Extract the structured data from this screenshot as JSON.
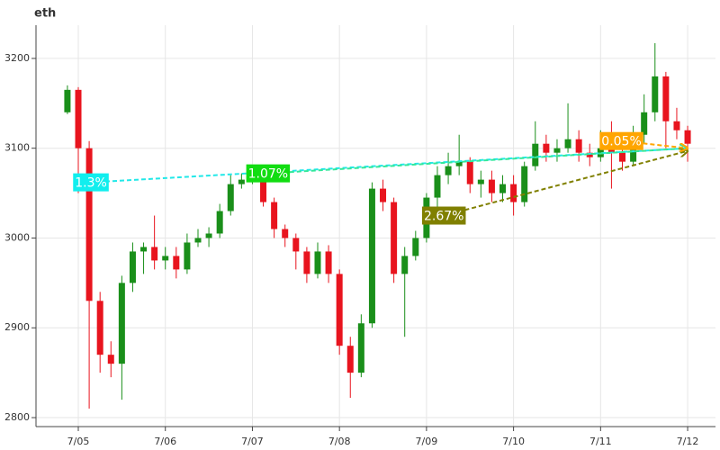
{
  "chart_data": {
    "type": "candlestick",
    "title": "eth",
    "x": [
      -0.125,
      0,
      0.125,
      0.25,
      0.375,
      0.5,
      0.625,
      0.75,
      0.875,
      1,
      1.125,
      1.25,
      1.375,
      1.5,
      1.625,
      1.75,
      1.875,
      2,
      2.125,
      2.25,
      2.375,
      2.5,
      2.625,
      2.75,
      2.875,
      3,
      3.125,
      3.25,
      3.375,
      3.5,
      3.625,
      3.75,
      3.875,
      4,
      4.125,
      4.25,
      4.375,
      4.5,
      4.625,
      4.75,
      4.875,
      5,
      5.125,
      5.25,
      5.375,
      5.5,
      5.625,
      5.75,
      5.875,
      6,
      6.125,
      6.25,
      6.375,
      6.5,
      6.625,
      6.75,
      6.875,
      7
    ],
    "open": [
      3140,
      3165,
      3100,
      2930,
      2870,
      2860,
      2950,
      2985,
      2990,
      2975,
      2980,
      2965,
      2995,
      3000,
      3005,
      3030,
      3060,
      3065,
      3070,
      3040,
      3010,
      3000,
      2985,
      2960,
      2985,
      2960,
      2880,
      2850,
      2905,
      3055,
      3040,
      2960,
      2980,
      3000,
      3045,
      3070,
      3080,
      3085,
      3060,
      3065,
      3050,
      3060,
      3040,
      3080,
      3105,
      3095,
      3100,
      3110,
      3095,
      3090,
      3100,
      3095,
      3085,
      3115,
      3140,
      3180,
      3130,
      3120
    ],
    "high": [
      3170,
      3168,
      3108,
      2940,
      2885,
      2958,
      2995,
      2995,
      3025,
      2990,
      2990,
      3005,
      3010,
      3012,
      3038,
      3070,
      3072,
      3080,
      3075,
      3045,
      3015,
      3005,
      2990,
      2995,
      2992,
      2965,
      2890,
      2915,
      3062,
      3065,
      3045,
      2990,
      3008,
      3050,
      3080,
      3095,
      3115,
      3090,
      3075,
      3075,
      3070,
      3070,
      3085,
      3130,
      3115,
      3110,
      3150,
      3120,
      3105,
      3120,
      3130,
      3105,
      3125,
      3160,
      3217,
      3185,
      3145,
      3125
    ],
    "low": [
      3138,
      3050,
      2810,
      2850,
      2845,
      2820,
      2940,
      2960,
      2965,
      2965,
      2955,
      2960,
      2990,
      2990,
      3000,
      3025,
      3055,
      3060,
      3035,
      3000,
      2990,
      2965,
      2950,
      2955,
      2950,
      2870,
      2822,
      2845,
      2900,
      3030,
      2950,
      2890,
      2975,
      2995,
      3030,
      3060,
      3070,
      3050,
      3045,
      3040,
      3040,
      3025,
      3035,
      3075,
      3085,
      3085,
      3095,
      3085,
      3080,
      3085,
      3055,
      3075,
      3080,
      3105,
      3130,
      3100,
      3110,
      3085
    ],
    "close": [
      3165,
      3100,
      2930,
      2870,
      2860,
      2950,
      2985,
      2990,
      2975,
      2980,
      2965,
      2995,
      3000,
      3005,
      3030,
      3060,
      3065,
      3070,
      3040,
      3010,
      3000,
      2985,
      2960,
      2985,
      2960,
      2880,
      2850,
      2905,
      3055,
      3040,
      2960,
      2980,
      3000,
      3045,
      3070,
      3080,
      3085,
      3060,
      3065,
      3050,
      3060,
      3040,
      3080,
      3105,
      3095,
      3100,
      3110,
      3095,
      3090,
      3100,
      3095,
      3085,
      3115,
      3140,
      3180,
      3130,
      3120,
      3105
    ],
    "up_color": "#1a8f1a",
    "down_color": "#e8141e",
    "xlim": [
      -0.486,
      7.32
    ],
    "xticks": [
      {
        "value": 0,
        "label": "7/05"
      },
      {
        "value": 1,
        "label": "7/06"
      },
      {
        "value": 2,
        "label": "7/07"
      },
      {
        "value": 3,
        "label": "7/08"
      },
      {
        "value": 4,
        "label": "7/09"
      },
      {
        "value": 5,
        "label": "7/10"
      },
      {
        "value": 6,
        "label": "7/11"
      },
      {
        "value": 7,
        "label": "7/12"
      }
    ],
    "ylim": [
      2790,
      3237
    ],
    "yticks": [
      2800,
      2900,
      3000,
      3100,
      3200
    ],
    "grid": true,
    "annotations": [
      {
        "text": "1.3%",
        "color": "#22e8e8",
        "box_color": "#11eeee",
        "x0": 0.145,
        "y0": 3062,
        "x1": 7.0,
        "y1": 3100
      },
      {
        "text": "1.07%",
        "color": "#33e899",
        "box_color": "#11dd11",
        "x0": 2.18,
        "y0": 3072,
        "x1": 7.0,
        "y1": 3100
      },
      {
        "text": "2.67%",
        "color": "#808000",
        "box_color": "#808000",
        "x0": 4.2,
        "y0": 3025,
        "x1": 7.0,
        "y1": 3097
      },
      {
        "text": "0.05%",
        "color": "#ffa500",
        "box_color": "#ffa500",
        "x0": 6.24,
        "y0": 3108,
        "x1": 7.0,
        "y1": 3100
      }
    ]
  }
}
